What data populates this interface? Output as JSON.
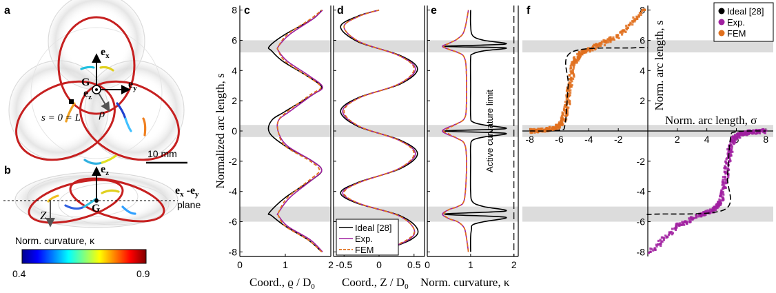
{
  "panels": {
    "a": "a",
    "b": "b",
    "c": "c",
    "d": "d",
    "e": "e",
    "f": "f"
  },
  "colors": {
    "ideal": "#000000",
    "exp": "#a020a0",
    "fem": "#e0701e",
    "band": "#dcdcdc",
    "ring": "#c62020"
  },
  "panel_a": {
    "ex": "e",
    "ex_sub": "x",
    "ey": "e",
    "ey_sub": "y",
    "ez": "e",
    "ez_sub": "z",
    "G": "G",
    "rho": "ρ",
    "s_eq": "s = 0 = L",
    "scale": "10 mm"
  },
  "panel_b": {
    "ez": "e",
    "ez_sub": "z",
    "G": "G",
    "Z": "Z",
    "plane1": "e",
    "plane1_sub": "x",
    "plane_dash": " -e",
    "plane2_sub": "y",
    "plane_word": "plane"
  },
  "colorbar": {
    "title": "Norm. curvature, κ",
    "min": "0.4",
    "max": "0.9"
  },
  "shared_y": {
    "label": "Normalized arc length, s",
    "ticks": [
      "8",
      "6",
      "4",
      "2",
      "0",
      "-2",
      "-4",
      "-6",
      "-8"
    ]
  },
  "panel_c": {
    "xlabel": "Coord., ϱ / D",
    "xlabel_sub": "0",
    "xticks": [
      "0",
      "1",
      "2"
    ]
  },
  "panel_d": {
    "xlabel": "Coord., Z / D",
    "xlabel_sub": "0",
    "xticks": [
      "-0.5",
      "0",
      "0.5"
    ],
    "legend": [
      "Ideal [28]",
      "Exp.",
      "FEM"
    ]
  },
  "panel_e": {
    "xlabel": "Norm. curvature, κ",
    "xticks": [
      "0",
      "1",
      "2"
    ],
    "limit_label": "Active curvature limit"
  },
  "panel_f": {
    "ylabel": "Norm. arc length, s",
    "xlabel": "Norm. arc length, σ",
    "xticks": [
      "-8",
      "-6",
      "-4",
      "-2",
      "2",
      "4",
      "6",
      "8"
    ],
    "yticks": [
      "8",
      "6",
      "4",
      "2",
      "-2",
      "-4",
      "-6",
      "-8"
    ],
    "legend": [
      "Ideal [28]",
      "Exp.",
      "FEM"
    ]
  },
  "chart_data": [
    {
      "type": "line",
      "panel": "c",
      "xlabel": "Coord., ϱ / D0",
      "ylabel": "Normalized arc length, s",
      "xlim": [
        0,
        2
      ],
      "ylim": [
        -8.3,
        8.3
      ],
      "bands": [
        [
          -6,
          -5
        ],
        [
          -0.4,
          0.4
        ],
        [
          5.2,
          6
        ]
      ],
      "series": [
        {
          "name": "Ideal [28]",
          "x": [
            1.8,
            1.5,
            1.0,
            0.7,
            0.65,
            1.0,
            1.6,
            1.8,
            1.6,
            1.0,
            0.65,
            0.7,
            1.0,
            1.6,
            1.8,
            1.5,
            0.95,
            0.7,
            0.65,
            1.0,
            1.6,
            1.8
          ],
          "s": [
            -8,
            -7.2,
            -6.3,
            -5.6,
            -5.4,
            -4.4,
            -3.2,
            -2.6,
            -2.0,
            -1.0,
            -0.1,
            0.7,
            1.3,
            2.4,
            2.9,
            3.6,
            4.6,
            5.3,
            5.6,
            6.4,
            7.4,
            8
          ]
        },
        {
          "name": "Exp.",
          "x": [
            1.82,
            1.55,
            1.05,
            0.85,
            0.85,
            1.1,
            1.6,
            1.8,
            1.6,
            1.05,
            0.85,
            0.85,
            1.1,
            1.6,
            1.82,
            1.55,
            1.05,
            0.85,
            0.85,
            1.1,
            1.6,
            1.82
          ],
          "s": [
            -8,
            -7.2,
            -6.3,
            -5.6,
            -5.4,
            -4.4,
            -3.2,
            -2.6,
            -2.0,
            -1.0,
            -0.1,
            0.7,
            1.3,
            2.4,
            2.9,
            3.6,
            4.6,
            5.3,
            5.6,
            6.4,
            7.4,
            8
          ]
        },
        {
          "name": "FEM",
          "x": [
            1.8,
            1.5,
            1.0,
            0.85,
            0.85,
            1.05,
            1.55,
            1.75,
            1.55,
            1.0,
            0.85,
            0.85,
            1.05,
            1.55,
            1.78,
            1.5,
            1.0,
            0.85,
            0.85,
            1.05,
            1.55,
            1.8
          ],
          "s": [
            -8,
            -7.2,
            -6.3,
            -5.6,
            -5.4,
            -4.4,
            -3.2,
            -2.6,
            -2.0,
            -1.0,
            -0.1,
            0.7,
            1.3,
            2.4,
            2.9,
            3.6,
            4.6,
            5.3,
            5.6,
            6.4,
            7.4,
            8
          ]
        }
      ]
    },
    {
      "type": "line",
      "panel": "d",
      "xlabel": "Coord., Z / D0",
      "ylabel": "Normalized arc length, s",
      "xlim": [
        -0.65,
        0.65
      ],
      "ylim": [
        -8.3,
        8.3
      ],
      "bands": [
        [
          -6,
          -5
        ],
        [
          -0.4,
          0.4
        ],
        [
          5.2,
          6
        ]
      ],
      "series": [
        {
          "name": "Ideal [28]",
          "x": [
            0.0,
            0.45,
            0.55,
            0.3,
            -0.3,
            -0.55,
            -0.3,
            0.3,
            0.55,
            0.3,
            -0.3,
            -0.55,
            -0.3,
            0.3,
            0.55,
            0.3,
            -0.3,
            -0.55,
            -0.3,
            0.0
          ],
          "s": [
            -8,
            -7.2,
            -6.5,
            -5.6,
            -4.8,
            -4.1,
            -3.4,
            -2.5,
            -1.5,
            -0.6,
            0.3,
            1.3,
            2.2,
            3.1,
            4.1,
            5.0,
            5.9,
            6.9,
            7.6,
            8
          ]
        },
        {
          "name": "Exp.",
          "x": [
            0.0,
            0.42,
            0.5,
            0.28,
            -0.28,
            -0.52,
            -0.28,
            0.28,
            0.52,
            0.28,
            -0.28,
            -0.52,
            -0.28,
            0.28,
            0.52,
            0.28,
            -0.28,
            -0.5,
            -0.28,
            0.0
          ],
          "s": [
            -8,
            -7.2,
            -6.5,
            -5.6,
            -4.8,
            -4.1,
            -3.4,
            -2.5,
            -1.5,
            -0.6,
            0.3,
            1.3,
            2.2,
            3.1,
            4.1,
            5.0,
            5.9,
            6.9,
            7.6,
            8
          ]
        },
        {
          "name": "FEM",
          "x": [
            0.0,
            0.4,
            0.5,
            0.28,
            -0.28,
            -0.5,
            -0.28,
            0.28,
            0.5,
            0.28,
            -0.28,
            -0.5,
            -0.28,
            0.28,
            0.5,
            0.28,
            -0.28,
            -0.5,
            -0.28,
            0.0
          ],
          "s": [
            -8,
            -7.2,
            -6.5,
            -5.6,
            -4.8,
            -4.1,
            -3.4,
            -2.5,
            -1.5,
            -0.6,
            0.3,
            1.3,
            2.2,
            3.1,
            4.1,
            5.0,
            5.9,
            6.9,
            7.6,
            8
          ]
        }
      ]
    },
    {
      "type": "line",
      "panel": "e",
      "xlabel": "Norm. curvature, κ",
      "ylabel": "Normalized arc length, s",
      "xlim": [
        0,
        2.1
      ],
      "ylim": [
        -8.3,
        8.3
      ],
      "bands": [
        [
          -6,
          -5
        ],
        [
          -0.4,
          0.4
        ],
        [
          5.2,
          6
        ]
      ],
      "limit_x": 2,
      "series": [
        {
          "name": "Ideal [28]",
          "x": [
            1.0,
            1.0,
            1.02,
            1.05,
            1.3,
            1.8,
            0.4,
            1.8,
            1.3,
            1.05,
            1.0,
            1.0,
            1.0,
            1.05,
            1.3,
            1.8,
            0.4,
            1.8,
            1.3,
            1.05,
            1.0,
            1.0,
            1.0,
            1.05,
            1.3,
            1.8,
            0.4,
            1.8,
            1.3,
            1.05,
            1.0,
            1.0
          ],
          "s": [
            -8,
            -7,
            -6.5,
            -6.2,
            -6.0,
            -5.7,
            -5.5,
            -5.3,
            -5.0,
            -4.7,
            -4,
            -2,
            -1,
            -0.6,
            -0.4,
            -0.15,
            0,
            0.15,
            0.4,
            0.6,
            1,
            3,
            4.8,
            5.1,
            5.3,
            5.5,
            5.6,
            5.75,
            6.0,
            6.3,
            7,
            8
          ]
        },
        {
          "name": "Exp.",
          "x": [
            0.95,
            0.9,
            0.85,
            0.7,
            0.5,
            0.35,
            0.5,
            0.7,
            0.85,
            0.9,
            0.9,
            0.85,
            0.7,
            0.45,
            0.35,
            0.45,
            0.7,
            0.85,
            0.9,
            0.9,
            0.85,
            0.7,
            0.5,
            0.35,
            0.5,
            0.7,
            0.85,
            0.95
          ],
          "s": [
            -8,
            -7,
            -6.4,
            -6.0,
            -5.8,
            -5.5,
            -5.2,
            -5.0,
            -4.6,
            -3,
            -1.5,
            -0.8,
            -0.5,
            -0.2,
            0,
            0.2,
            0.5,
            0.8,
            1.5,
            4,
            4.9,
            5.2,
            5.4,
            5.6,
            5.8,
            6.1,
            6.6,
            8
          ]
        },
        {
          "name": "FEM",
          "x": [
            0.95,
            0.9,
            0.85,
            0.7,
            0.5,
            0.38,
            0.5,
            0.7,
            0.85,
            0.9,
            0.9,
            0.85,
            0.7,
            0.5,
            0.38,
            0.5,
            0.7,
            0.85,
            0.9,
            0.9,
            0.85,
            0.7,
            0.5,
            0.38,
            0.5,
            0.7,
            0.85,
            0.95
          ],
          "s": [
            -8,
            -7,
            -6.4,
            -6.0,
            -5.8,
            -5.5,
            -5.2,
            -5.0,
            -4.6,
            -3,
            -1.5,
            -0.8,
            -0.5,
            -0.2,
            0,
            0.2,
            0.5,
            0.8,
            1.5,
            4,
            4.9,
            5.2,
            5.4,
            5.6,
            5.8,
            6.1,
            6.6,
            8
          ]
        }
      ]
    },
    {
      "type": "scatter",
      "panel": "f",
      "xlabel": "Norm. arc length, σ",
      "ylabel": "Norm. arc length, s",
      "xlim": [
        -8.5,
        8.5
      ],
      "ylim": [
        -8.3,
        8.3
      ],
      "bands": [
        [
          -6,
          -5
        ],
        [
          -0.4,
          0.4
        ],
        [
          5.2,
          6
        ]
      ],
      "series": [
        {
          "name": "Ideal [28]",
          "type": "line",
          "sigma": [
            -8,
            -6,
            -5.6,
            -5.4,
            -5.2,
            -1,
            0,
            0,
            0.5,
            5.2,
            5.4,
            5.6,
            6,
            8
          ],
          "s": [
            0,
            0.05,
            0.5,
            3,
            5.2,
            5.5,
            5.5,
            -5.5,
            -5.5,
            -5.2,
            -3,
            -0.5,
            -0.05,
            0
          ]
        },
        {
          "name": "Exp.",
          "type": "scatter",
          "sigma": [
            0.2,
            2,
            3.5,
            4.5,
            5,
            5.3,
            5.5,
            5.8,
            6.3,
            7,
            8
          ],
          "s": [
            -8,
            -6.3,
            -5.6,
            -5.2,
            -4.6,
            -3,
            -1.5,
            -0.5,
            -0.2,
            -0.07,
            0
          ]
        },
        {
          "name": "FEM",
          "type": "scatter",
          "sigma": [
            -8,
            -7,
            -6.3,
            -5.8,
            -5.5,
            -5.3,
            -5,
            -4.5,
            -3.5,
            -2,
            -0.2
          ],
          "s": [
            0,
            0.07,
            0.2,
            0.5,
            1.5,
            3,
            4.6,
            5.2,
            5.6,
            6.3,
            8
          ]
        }
      ]
    }
  ]
}
